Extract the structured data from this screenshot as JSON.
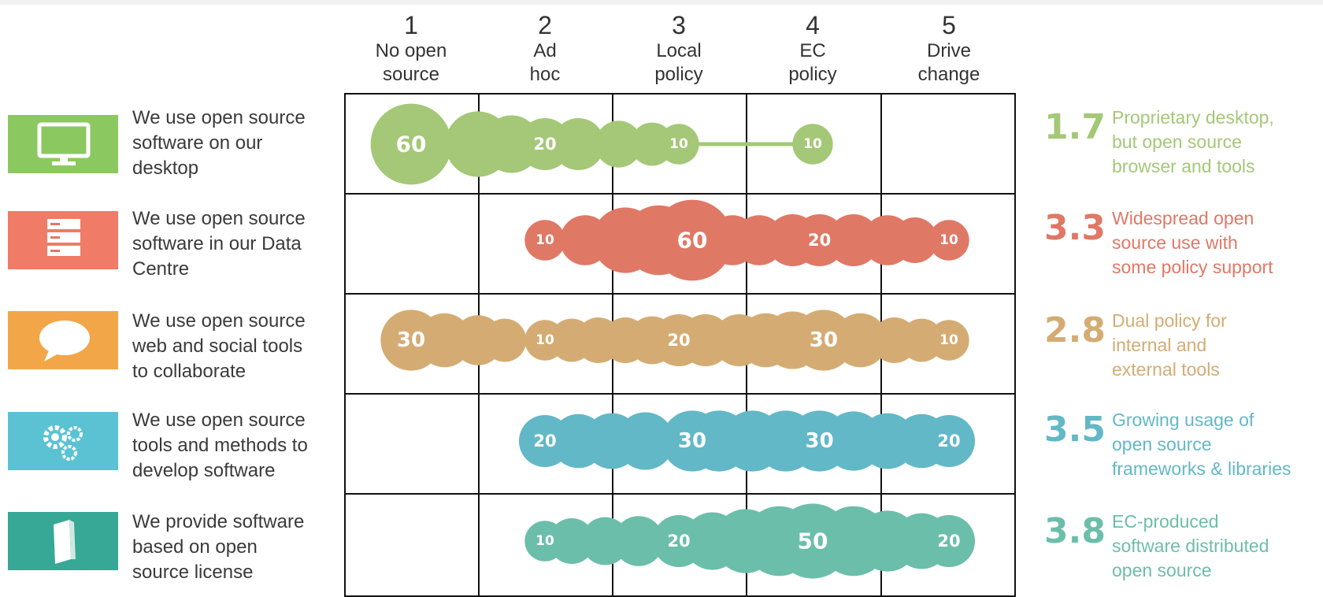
{
  "levels": [
    {
      "number": "1",
      "label": "No open\nsource"
    },
    {
      "number": "2",
      "label": "Ad\nhoc"
    },
    {
      "number": "3",
      "label": "Local\npolicy"
    },
    {
      "number": "4",
      "label": "EC\npolicy"
    },
    {
      "number": "5",
      "label": "Drive\nchange"
    }
  ],
  "chart_data": {
    "type": "bubble-strip",
    "x_scale": [
      1,
      2,
      3,
      4,
      5
    ],
    "rows": [
      {
        "statement": "We use open source\nsoftware on our\ndesktop",
        "icon": "desktop-monitor-icon",
        "color": "#a4c877",
        "score": "1.7",
        "description": "Proprietary desktop,\nbut open source\nbrowser and tools",
        "labels": [
          {
            "x": 1.0,
            "value": "60"
          },
          {
            "x": 2.0,
            "value": "20"
          },
          {
            "x": 3.0,
            "value": "10"
          },
          {
            "x": 4.0,
            "value": "10"
          }
        ],
        "connector": [
          3.0,
          4.0
        ],
        "bubbles": [
          {
            "x": 1.0,
            "s": 60
          },
          {
            "x": 1.5,
            "s": 36
          },
          {
            "x": 1.75,
            "s": 26
          },
          {
            "x": 2.0,
            "s": 20
          },
          {
            "x": 2.25,
            "s": 20
          },
          {
            "x": 2.55,
            "s": 15
          },
          {
            "x": 2.8,
            "s": 12
          },
          {
            "x": 3.0,
            "s": 10
          },
          {
            "x": 4.0,
            "s": 10
          }
        ]
      },
      {
        "statement": "We use open source\nsoftware in our Data\nCentre",
        "icon": "server-rack-icon",
        "color": "#e07866",
        "score": "3.3",
        "description": "Widespread open\nsource use with\nsome policy support",
        "labels": [
          {
            "x": 2.0,
            "value": "10"
          },
          {
            "x": 3.1,
            "value": "60"
          },
          {
            "x": 4.05,
            "value": "20"
          },
          {
            "x": 5.0,
            "value": "10"
          }
        ],
        "bubbles": [
          {
            "x": 2.0,
            "s": 10
          },
          {
            "x": 2.3,
            "s": 18
          },
          {
            "x": 2.6,
            "s": 36
          },
          {
            "x": 2.85,
            "s": 42
          },
          {
            "x": 3.1,
            "s": 60
          },
          {
            "x": 3.4,
            "s": 18
          },
          {
            "x": 3.6,
            "s": 18
          },
          {
            "x": 3.85,
            "s": 20
          },
          {
            "x": 4.05,
            "s": 20
          },
          {
            "x": 4.3,
            "s": 20
          },
          {
            "x": 4.55,
            "s": 18
          },
          {
            "x": 4.75,
            "s": 14
          },
          {
            "x": 5.0,
            "s": 10
          }
        ]
      },
      {
        "statement": "We use open source\nweb and social tools\nto  collaborate",
        "icon": "speech-bubble-icon",
        "color": "#d4ac73",
        "score": "2.8",
        "description": "Dual policy for\ninternal and\nexternal tools",
        "labels": [
          {
            "x": 1.0,
            "value": "30"
          },
          {
            "x": 2.0,
            "value": "10"
          },
          {
            "x": 3.0,
            "value": "20"
          },
          {
            "x": 4.08,
            "value": "30"
          },
          {
            "x": 5.0,
            "value": "10"
          }
        ],
        "bubbles": [
          {
            "x": 1.0,
            "s": 30
          },
          {
            "x": 1.25,
            "s": 22
          },
          {
            "x": 1.5,
            "s": 18
          },
          {
            "x": 1.7,
            "s": 12
          },
          {
            "x": 2.0,
            "s": 10
          },
          {
            "x": 2.2,
            "s": 12
          },
          {
            "x": 2.4,
            "s": 14
          },
          {
            "x": 2.6,
            "s": 14
          },
          {
            "x": 2.8,
            "s": 16
          },
          {
            "x": 3.0,
            "s": 20
          },
          {
            "x": 3.2,
            "s": 20
          },
          {
            "x": 3.45,
            "s": 20
          },
          {
            "x": 3.65,
            "s": 22
          },
          {
            "x": 3.85,
            "s": 26
          },
          {
            "x": 4.08,
            "s": 30
          },
          {
            "x": 4.35,
            "s": 22
          },
          {
            "x": 4.6,
            "s": 14
          },
          {
            "x": 4.8,
            "s": 12
          },
          {
            "x": 5.0,
            "s": 10
          }
        ]
      },
      {
        "statement": "We use open source\ntools  and methods to\ndevelop software",
        "icon": "gears-icon",
        "color": "#62b8c6",
        "score": "3.5",
        "description": "Growing usage of\nopen source\nframeworks & libraries",
        "labels": [
          {
            "x": 2.0,
            "value": "20"
          },
          {
            "x": 3.1,
            "value": "30"
          },
          {
            "x": 4.05,
            "value": "30"
          },
          {
            "x": 5.0,
            "value": "20"
          }
        ],
        "bubbles": [
          {
            "x": 2.0,
            "s": 20
          },
          {
            "x": 2.25,
            "s": 22
          },
          {
            "x": 2.5,
            "s": 24
          },
          {
            "x": 2.75,
            "s": 26
          },
          {
            "x": 3.1,
            "s": 30
          },
          {
            "x": 3.3,
            "s": 30
          },
          {
            "x": 3.55,
            "s": 30
          },
          {
            "x": 3.8,
            "s": 30
          },
          {
            "x": 4.05,
            "s": 30
          },
          {
            "x": 4.3,
            "s": 28
          },
          {
            "x": 4.55,
            "s": 24
          },
          {
            "x": 4.8,
            "s": 22
          },
          {
            "x": 5.0,
            "s": 20
          }
        ]
      },
      {
        "statement": "We provide  software\nbased  on open\nsource license",
        "icon": "box-icon",
        "color": "#6bbeaa",
        "score": "3.8",
        "description": "EC-produced\nsoftware distributed\nopen source",
        "labels": [
          {
            "x": 2.0,
            "value": "10"
          },
          {
            "x": 3.0,
            "value": "20"
          },
          {
            "x": 4.0,
            "value": "50"
          },
          {
            "x": 5.0,
            "value": "20"
          }
        ],
        "bubbles": [
          {
            "x": 2.0,
            "s": 10
          },
          {
            "x": 2.2,
            "s": 14
          },
          {
            "x": 2.45,
            "s": 16
          },
          {
            "x": 2.7,
            "s": 18
          },
          {
            "x": 3.0,
            "s": 20
          },
          {
            "x": 3.25,
            "s": 26
          },
          {
            "x": 3.5,
            "s": 34
          },
          {
            "x": 3.75,
            "s": 42
          },
          {
            "x": 4.0,
            "s": 50
          },
          {
            "x": 4.3,
            "s": 42
          },
          {
            "x": 4.55,
            "s": 30
          },
          {
            "x": 4.8,
            "s": 24
          },
          {
            "x": 5.0,
            "s": 20
          }
        ]
      }
    ]
  }
}
